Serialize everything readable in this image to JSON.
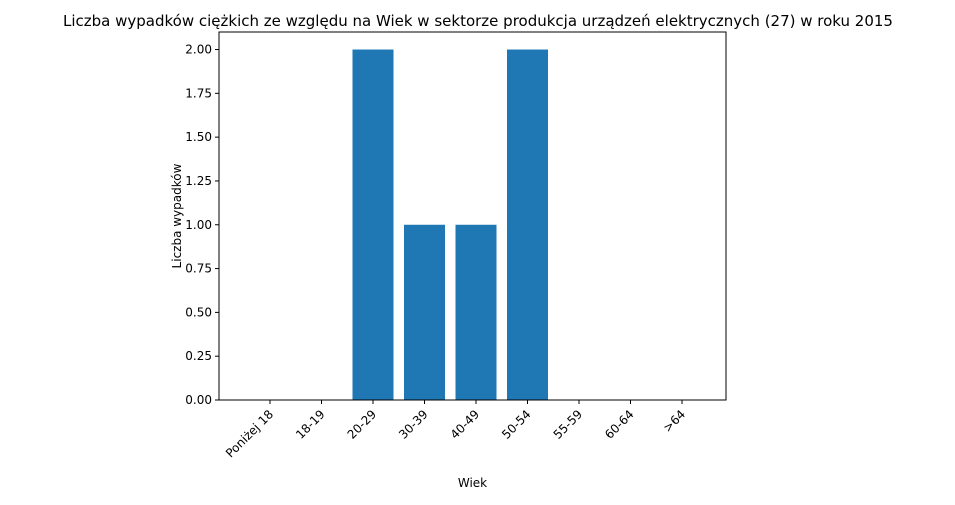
{
  "chart_data": {
    "type": "bar",
    "title": "Liczba wypadków ciężkich ze względu na Wiek w sektorze produkcja urządzeń elektrycznych (27)   w roku 2015",
    "xlabel": "Wiek",
    "ylabel": "Liczba wypadków",
    "categories": [
      "Poniżej 18",
      "18-19",
      "20-29",
      "30-39",
      "40-49",
      "50-54",
      "55-59",
      "60-64",
      ">64"
    ],
    "values": [
      0,
      0,
      2,
      1,
      1,
      2,
      0,
      0,
      0
    ],
    "ylim": [
      0,
      2.1
    ],
    "yticks": [
      "0.00",
      "0.25",
      "0.50",
      "0.75",
      "1.00",
      "1.25",
      "1.50",
      "1.75",
      "2.00"
    ],
    "bar_color": "#1f77b4",
    "grid": false,
    "legend": "none"
  }
}
